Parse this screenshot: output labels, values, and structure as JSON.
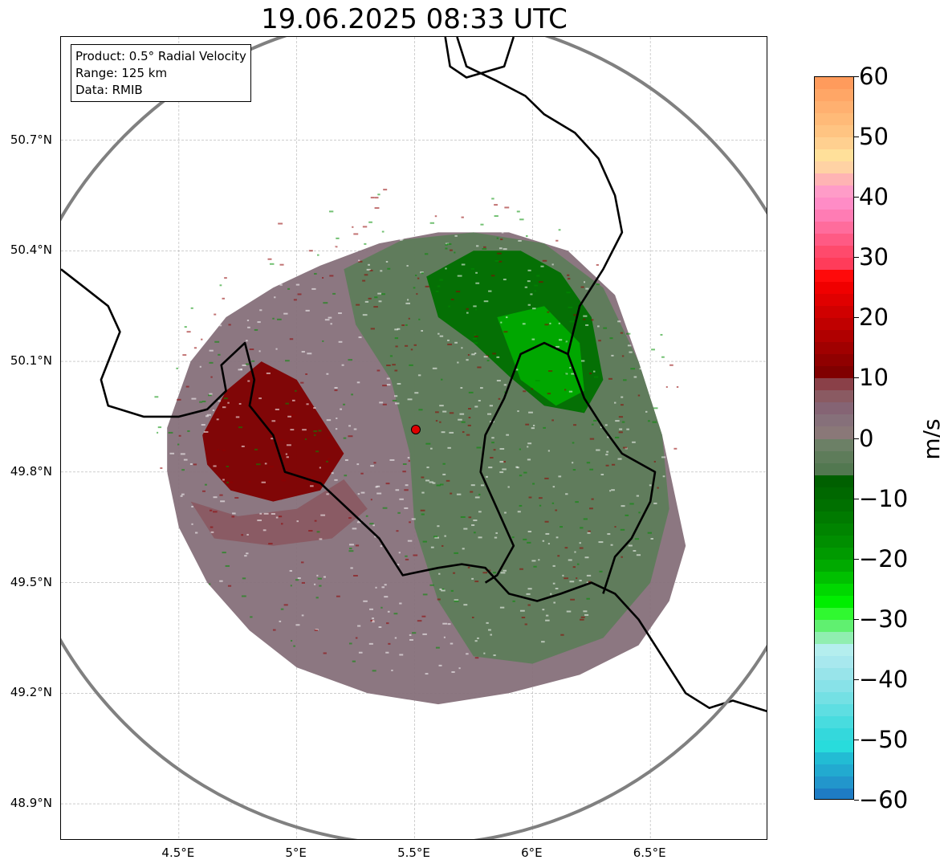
{
  "title": "19.06.2025 08:33 UTC",
  "info_box": {
    "product": "Product: 0.5° Radial Velocity",
    "range": "Range: 125 km",
    "data": "Data: RMIB"
  },
  "axes": {
    "lon_min": 4.0,
    "lon_max": 7.0,
    "lat_min": 48.8,
    "lat_max": 50.98,
    "x_ticks": [
      {
        "value": 4.5,
        "label": "4.5°E"
      },
      {
        "value": 5.0,
        "label": "5°E"
      },
      {
        "value": 5.5,
        "label": "5.5°E"
      },
      {
        "value": 6.0,
        "label": "6°E"
      },
      {
        "value": 6.5,
        "label": "6.5°E"
      }
    ],
    "y_ticks": [
      {
        "value": 50.7,
        "label": "50.7°N"
      },
      {
        "value": 50.4,
        "label": "50.4°N"
      },
      {
        "value": 50.1,
        "label": "50.1°N"
      },
      {
        "value": 49.8,
        "label": "49.8°N"
      },
      {
        "value": 49.5,
        "label": "49.5°N"
      },
      {
        "value": 49.2,
        "label": "49.2°N"
      },
      {
        "value": 48.9,
        "label": "48.9°N"
      }
    ],
    "grid": true
  },
  "radar": {
    "site": {
      "lon": 5.505,
      "lat": 49.915
    },
    "range_km": 125,
    "range_ring_color": "#808080",
    "site_color": "#e00000"
  },
  "colorbar": {
    "unit": "m/s",
    "min": -60,
    "max": 60,
    "ticks": [
      {
        "value": 60,
        "label": "60"
      },
      {
        "value": 50,
        "label": "50"
      },
      {
        "value": 40,
        "label": "40"
      },
      {
        "value": 30,
        "label": "30"
      },
      {
        "value": 20,
        "label": "20"
      },
      {
        "value": 10,
        "label": "10"
      },
      {
        "value": 0,
        "label": "0"
      },
      {
        "value": -10,
        "label": "−10"
      },
      {
        "value": -20,
        "label": "−20"
      },
      {
        "value": -30,
        "label": "−30"
      },
      {
        "value": -40,
        "label": "−40"
      },
      {
        "value": -50,
        "label": "−50"
      },
      {
        "value": -60,
        "label": "−60"
      }
    ],
    "bands": [
      {
        "from": 58,
        "to": 60,
        "color": "#ff9b5c"
      },
      {
        "from": 56,
        "to": 58,
        "color": "#ffa666"
      },
      {
        "from": 54,
        "to": 56,
        "color": "#ffb070"
      },
      {
        "from": 52,
        "to": 54,
        "color": "#ffba78"
      },
      {
        "from": 50,
        "to": 52,
        "color": "#ffc482"
      },
      {
        "from": 48,
        "to": 50,
        "color": "#ffd090"
      },
      {
        "from": 46,
        "to": 48,
        "color": "#ffe09a"
      },
      {
        "from": 44,
        "to": 46,
        "color": "#ffd2a4"
      },
      {
        "from": 42,
        "to": 44,
        "color": "#ffb4b4"
      },
      {
        "from": 40,
        "to": 42,
        "color": "#ff9cc8"
      },
      {
        "from": 38,
        "to": 40,
        "color": "#ff8cc6"
      },
      {
        "from": 36,
        "to": 38,
        "color": "#ff7cb4"
      },
      {
        "from": 34,
        "to": 36,
        "color": "#ff6c9c"
      },
      {
        "from": 32,
        "to": 34,
        "color": "#ff5a84"
      },
      {
        "from": 30,
        "to": 32,
        "color": "#ff4a6c"
      },
      {
        "from": 28,
        "to": 30,
        "color": "#ff3c5a"
      },
      {
        "from": 26,
        "to": 28,
        "color": "#ff0a0a"
      },
      {
        "from": 24,
        "to": 26,
        "color": "#f00000"
      },
      {
        "from": 22,
        "to": 24,
        "color": "#e00000"
      },
      {
        "from": 20,
        "to": 22,
        "color": "#d00000"
      },
      {
        "from": 18,
        "to": 20,
        "color": "#c00000"
      },
      {
        "from": 16,
        "to": 18,
        "color": "#b00000"
      },
      {
        "from": 14,
        "to": 16,
        "color": "#a00000"
      },
      {
        "from": 12,
        "to": 14,
        "color": "#900000"
      },
      {
        "from": 10,
        "to": 12,
        "color": "#800000"
      },
      {
        "from": 8,
        "to": 10,
        "color": "#8a4048"
      },
      {
        "from": 6,
        "to": 8,
        "color": "#8a5a62"
      },
      {
        "from": 4,
        "to": 6,
        "color": "#856474"
      },
      {
        "from": 2,
        "to": 4,
        "color": "#86707a"
      },
      {
        "from": 0,
        "to": 2,
        "color": "#8a7878"
      },
      {
        "from": -2,
        "to": 0,
        "color": "#6c8066"
      },
      {
        "from": -4,
        "to": -2,
        "color": "#5e7c5a"
      },
      {
        "from": -6,
        "to": -4,
        "color": "#527850"
      },
      {
        "from": -8,
        "to": -6,
        "color": "#006000"
      },
      {
        "from": -10,
        "to": -8,
        "color": "#006800"
      },
      {
        "from": -12,
        "to": -10,
        "color": "#007000"
      },
      {
        "from": -14,
        "to": -12,
        "color": "#007a00"
      },
      {
        "from": -16,
        "to": -14,
        "color": "#008400"
      },
      {
        "from": -18,
        "to": -16,
        "color": "#008e00"
      },
      {
        "from": -20,
        "to": -18,
        "color": "#009a00"
      },
      {
        "from": -22,
        "to": -20,
        "color": "#00aa00"
      },
      {
        "from": -24,
        "to": -22,
        "color": "#00c000"
      },
      {
        "from": -26,
        "to": -24,
        "color": "#00d800"
      },
      {
        "from": -28,
        "to": -26,
        "color": "#00ee00"
      },
      {
        "from": -30,
        "to": -28,
        "color": "#30f830"
      },
      {
        "from": -32,
        "to": -30,
        "color": "#60f070"
      },
      {
        "from": -34,
        "to": -32,
        "color": "#90eeb0"
      },
      {
        "from": -36,
        "to": -34,
        "color": "#b4eeee"
      },
      {
        "from": -38,
        "to": -36,
        "color": "#a8e8ee"
      },
      {
        "from": -40,
        "to": -38,
        "color": "#98e4ea"
      },
      {
        "from": -42,
        "to": -40,
        "color": "#88e2e8"
      },
      {
        "from": -44,
        "to": -42,
        "color": "#74e0e4"
      },
      {
        "from": -46,
        "to": -44,
        "color": "#5edee2"
      },
      {
        "from": -48,
        "to": -46,
        "color": "#48dcdf"
      },
      {
        "from": -50,
        "to": -48,
        "color": "#34d8dc"
      },
      {
        "from": -52,
        "to": -50,
        "color": "#28dcdc"
      },
      {
        "from": -54,
        "to": -52,
        "color": "#22bcd4"
      },
      {
        "from": -56,
        "to": -54,
        "color": "#22aad0"
      },
      {
        "from": -58,
        "to": -56,
        "color": "#2296cc"
      },
      {
        "from": -60,
        "to": -58,
        "color": "#1e7cc4"
      }
    ]
  },
  "echo_regions": [
    {
      "name": "outer-echo",
      "color": "#86707a",
      "points": [
        [
          4.45,
          49.92
        ],
        [
          4.55,
          50.1
        ],
        [
          4.7,
          50.22
        ],
        [
          4.9,
          50.3
        ],
        [
          5.1,
          50.36
        ],
        [
          5.35,
          50.42
        ],
        [
          5.6,
          50.45
        ],
        [
          5.9,
          50.45
        ],
        [
          6.15,
          50.4
        ],
        [
          6.35,
          50.28
        ],
        [
          6.45,
          50.1
        ],
        [
          6.55,
          49.9
        ],
        [
          6.6,
          49.75
        ],
        [
          6.65,
          49.6
        ],
        [
          6.58,
          49.45
        ],
        [
          6.45,
          49.33
        ],
        [
          6.2,
          49.25
        ],
        [
          5.9,
          49.2
        ],
        [
          5.6,
          49.17
        ],
        [
          5.3,
          49.2
        ],
        [
          5.0,
          49.27
        ],
        [
          4.8,
          49.37
        ],
        [
          4.62,
          49.5
        ],
        [
          4.5,
          49.65
        ],
        [
          4.45,
          49.8
        ]
      ]
    },
    {
      "name": "inbound-grey-green",
      "color": "#5e7c5a",
      "points": [
        [
          5.2,
          50.35
        ],
        [
          5.45,
          50.43
        ],
        [
          5.75,
          50.45
        ],
        [
          6.05,
          50.42
        ],
        [
          6.3,
          50.3
        ],
        [
          6.45,
          50.1
        ],
        [
          6.55,
          49.9
        ],
        [
          6.58,
          49.7
        ],
        [
          6.5,
          49.5
        ],
        [
          6.3,
          49.35
        ],
        [
          6.0,
          49.28
        ],
        [
          5.75,
          49.3
        ],
        [
          5.6,
          49.45
        ],
        [
          5.5,
          49.65
        ],
        [
          5.48,
          49.85
        ],
        [
          5.4,
          50.05
        ],
        [
          5.25,
          50.2
        ]
      ]
    },
    {
      "name": "inbound-strong-green",
      "color": "#007000",
      "points": [
        [
          5.55,
          50.33
        ],
        [
          5.75,
          50.4
        ],
        [
          5.95,
          50.4
        ],
        [
          6.12,
          50.34
        ],
        [
          6.25,
          50.22
        ],
        [
          6.3,
          50.05
        ],
        [
          6.22,
          49.96
        ],
        [
          6.05,
          49.98
        ],
        [
          5.9,
          50.06
        ],
        [
          5.75,
          50.15
        ],
        [
          5.6,
          50.22
        ]
      ]
    },
    {
      "name": "inbound-bright-green",
      "color": "#00aa00",
      "points": [
        [
          5.85,
          50.22
        ],
        [
          6.05,
          50.25
        ],
        [
          6.2,
          50.15
        ],
        [
          6.22,
          50.02
        ],
        [
          6.1,
          49.98
        ],
        [
          5.95,
          50.05
        ]
      ]
    },
    {
      "name": "outbound-red",
      "color": "#800000",
      "points": [
        [
          4.6,
          49.9
        ],
        [
          4.7,
          50.02
        ],
        [
          4.85,
          50.1
        ],
        [
          5.0,
          50.05
        ],
        [
          5.1,
          49.95
        ],
        [
          5.2,
          49.85
        ],
        [
          5.1,
          49.75
        ],
        [
          4.9,
          49.72
        ],
        [
          4.72,
          49.75
        ],
        [
          4.62,
          49.82
        ]
      ]
    },
    {
      "name": "outbound-mauve",
      "color": "#8a5a62",
      "points": [
        [
          4.55,
          49.72
        ],
        [
          4.75,
          49.68
        ],
        [
          5.0,
          49.7
        ],
        [
          5.2,
          49.78
        ],
        [
          5.3,
          49.7
        ],
        [
          5.15,
          49.62
        ],
        [
          4.9,
          49.6
        ],
        [
          4.65,
          49.62
        ]
      ]
    }
  ],
  "borders": [
    {
      "name": "france-belgium-luxembourg-border",
      "points": [
        [
          4.0,
          50.35
        ],
        [
          4.1,
          50.3
        ],
        [
          4.2,
          50.25
        ],
        [
          4.25,
          50.18
        ],
        [
          4.17,
          50.05
        ],
        [
          4.2,
          49.98
        ],
        [
          4.35,
          49.95
        ],
        [
          4.5,
          49.95
        ],
        [
          4.62,
          49.97
        ],
        [
          4.7,
          50.02
        ],
        [
          4.68,
          50.09
        ],
        [
          4.78,
          50.15
        ],
        [
          4.82,
          50.05
        ],
        [
          4.8,
          49.98
        ],
        [
          4.9,
          49.9
        ],
        [
          4.95,
          49.8
        ],
        [
          5.1,
          49.77
        ],
        [
          5.25,
          49.68
        ],
        [
          5.35,
          49.62
        ],
        [
          5.45,
          49.52
        ],
        [
          5.6,
          49.54
        ],
        [
          5.7,
          49.55
        ],
        [
          5.8,
          49.54
        ],
        [
          5.9,
          49.47
        ],
        [
          6.02,
          49.45
        ],
        [
          6.12,
          49.47
        ],
        [
          6.25,
          49.5
        ],
        [
          6.35,
          49.47
        ],
        [
          6.45,
          49.4
        ],
        [
          6.55,
          49.3
        ],
        [
          6.65,
          49.2
        ],
        [
          6.75,
          49.16
        ],
        [
          6.85,
          49.18
        ],
        [
          7.0,
          49.15
        ]
      ]
    },
    {
      "name": "belgium-luxembourg-border",
      "points": [
        [
          6.3,
          49.47
        ],
        [
          6.35,
          49.57
        ],
        [
          6.42,
          49.62
        ],
        [
          6.5,
          49.72
        ],
        [
          6.52,
          49.8
        ],
        [
          6.38,
          49.85
        ],
        [
          6.3,
          49.92
        ],
        [
          6.22,
          50.0
        ],
        [
          6.15,
          50.12
        ],
        [
          6.05,
          50.15
        ],
        [
          5.95,
          50.12
        ],
        [
          5.88,
          50.0
        ],
        [
          5.8,
          49.9
        ],
        [
          5.78,
          49.8
        ],
        [
          5.85,
          49.7
        ],
        [
          5.92,
          49.6
        ],
        [
          5.85,
          49.52
        ],
        [
          5.8,
          49.5
        ]
      ]
    },
    {
      "name": "belgium-germany-border",
      "points": [
        [
          6.15,
          50.12
        ],
        [
          6.2,
          50.25
        ],
        [
          6.3,
          50.35
        ],
        [
          6.38,
          50.45
        ],
        [
          6.35,
          50.55
        ],
        [
          6.28,
          50.65
        ],
        [
          6.18,
          50.72
        ],
        [
          6.05,
          50.77
        ],
        [
          5.97,
          50.82
        ],
        [
          5.85,
          50.86
        ],
        [
          5.72,
          50.9
        ],
        [
          5.68,
          50.98
        ]
      ]
    },
    {
      "name": "netherlands-border",
      "points": [
        [
          5.63,
          50.98
        ],
        [
          5.65,
          50.9
        ],
        [
          5.72,
          50.87
        ],
        [
          5.88,
          50.9
        ],
        [
          5.92,
          50.98
        ]
      ]
    }
  ]
}
